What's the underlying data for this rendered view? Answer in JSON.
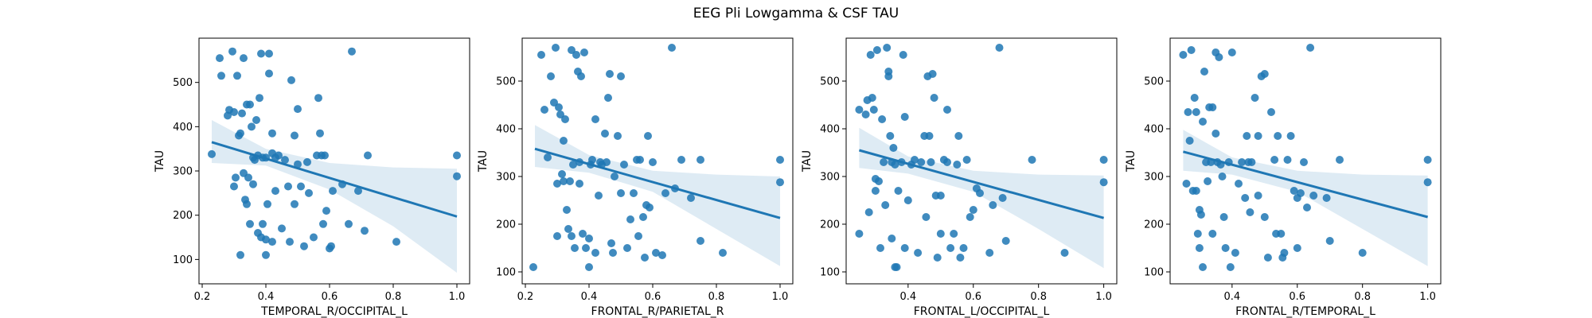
{
  "title": "EEG Pli Lowgamma & CSF TAU",
  "colors": {
    "point": "#1f77b4",
    "line": "#1f77b4",
    "band": "#1f77b4"
  },
  "chart_data": [
    {
      "type": "scatter",
      "xlabel": "TEMPORAL_R/OCCIPITAL_L",
      "ylabel": "TAU",
      "xlim": [
        0.19,
        1.04
      ],
      "ylim": [
        45,
        600
      ],
      "xticks": [
        0.2,
        0.4,
        0.6,
        0.8,
        1.0
      ],
      "xtick_labels": [
        "0.2",
        "0.4",
        "0.6",
        "0.8",
        "1.0"
      ],
      "yticks": [
        100,
        200,
        300,
        400,
        500
      ],
      "yticks_labels": [
        "100",
        "200",
        "300",
        "400",
        "500"
      ],
      "fit_line": [
        [
          0.23,
          365
        ],
        [
          1.0,
          197
        ]
      ],
      "band": {
        "x": [
          0.23,
          0.4,
          0.6,
          0.8,
          1.0
        ],
        "upper": [
          415,
          350,
          318,
          308,
          305
        ],
        "lower": [
          318,
          312,
          258,
          175,
          70
        ]
      },
      "points": [
        [
          0.23,
          338
        ],
        [
          0.255,
          555
        ],
        [
          0.26,
          515
        ],
        [
          0.28,
          425
        ],
        [
          0.285,
          438
        ],
        [
          0.295,
          570
        ],
        [
          0.3,
          265
        ],
        [
          0.3,
          433
        ],
        [
          0.305,
          285
        ],
        [
          0.31,
          515
        ],
        [
          0.315,
          380
        ],
        [
          0.32,
          110
        ],
        [
          0.32,
          385
        ],
        [
          0.325,
          430
        ],
        [
          0.33,
          295
        ],
        [
          0.33,
          555
        ],
        [
          0.335,
          235
        ],
        [
          0.34,
          225
        ],
        [
          0.34,
          450
        ],
        [
          0.345,
          285
        ],
        [
          0.35,
          180
        ],
        [
          0.35,
          450
        ],
        [
          0.355,
          400
        ],
        [
          0.36,
          330
        ],
        [
          0.36,
          270
        ],
        [
          0.365,
          325
        ],
        [
          0.37,
          415
        ],
        [
          0.375,
          160
        ],
        [
          0.375,
          335
        ],
        [
          0.38,
          465
        ],
        [
          0.385,
          150
        ],
        [
          0.385,
          565
        ],
        [
          0.39,
          180
        ],
        [
          0.39,
          330
        ],
        [
          0.4,
          330
        ],
        [
          0.4,
          145
        ],
        [
          0.4,
          110
        ],
        [
          0.405,
          225
        ],
        [
          0.41,
          520
        ],
        [
          0.41,
          565
        ],
        [
          0.42,
          340
        ],
        [
          0.42,
          385
        ],
        [
          0.42,
          140
        ],
        [
          0.43,
          330
        ],
        [
          0.43,
          255
        ],
        [
          0.44,
          335
        ],
        [
          0.45,
          170
        ],
        [
          0.46,
          325
        ],
        [
          0.47,
          265
        ],
        [
          0.475,
          140
        ],
        [
          0.48,
          505
        ],
        [
          0.49,
          225
        ],
        [
          0.49,
          380
        ],
        [
          0.5,
          315
        ],
        [
          0.5,
          440
        ],
        [
          0.51,
          265
        ],
        [
          0.52,
          130
        ],
        [
          0.53,
          320
        ],
        [
          0.535,
          250
        ],
        [
          0.55,
          150
        ],
        [
          0.56,
          335
        ],
        [
          0.565,
          465
        ],
        [
          0.57,
          385
        ],
        [
          0.575,
          335
        ],
        [
          0.58,
          180
        ],
        [
          0.585,
          335
        ],
        [
          0.59,
          210
        ],
        [
          0.6,
          125
        ],
        [
          0.605,
          130
        ],
        [
          0.61,
          255
        ],
        [
          0.64,
          270
        ],
        [
          0.66,
          180
        ],
        [
          0.67,
          570
        ],
        [
          0.69,
          255
        ],
        [
          0.71,
          165
        ],
        [
          0.72,
          335
        ],
        [
          0.81,
          140
        ],
        [
          1.0,
          335
        ],
        [
          1.0,
          288
        ]
      ]
    },
    {
      "type": "scatter",
      "xlabel": "FRONTAL_R/PARIETAL_R",
      "ylabel": "TAU",
      "xlim": [
        0.19,
        1.04
      ],
      "ylim": [
        75,
        590
      ],
      "xticks": [
        0.2,
        0.4,
        0.6,
        0.8,
        1.0
      ],
      "xtick_labels": [
        "0.2",
        "0.4",
        "0.6",
        "0.8",
        "1.0"
      ],
      "yticks": [
        100,
        200,
        300,
        400,
        500
      ],
      "yticks_labels": [
        "100",
        "200",
        "300",
        "400",
        "500"
      ],
      "fit_line": [
        [
          0.23,
          358
        ],
        [
          1.0,
          213
        ]
      ],
      "band": {
        "x": [
          0.23,
          0.4,
          0.6,
          0.8,
          1.0
        ],
        "upper": [
          408,
          345,
          312,
          304,
          300
        ],
        "lower": [
          320,
          308,
          268,
          190,
          112
        ]
      },
      "points": [
        [
          0.225,
          110
        ],
        [
          0.25,
          555
        ],
        [
          0.26,
          440
        ],
        [
          0.27,
          340
        ],
        [
          0.28,
          510
        ],
        [
          0.29,
          455
        ],
        [
          0.295,
          570
        ],
        [
          0.3,
          285
        ],
        [
          0.3,
          175
        ],
        [
          0.305,
          445
        ],
        [
          0.31,
          430
        ],
        [
          0.315,
          305
        ],
        [
          0.32,
          290
        ],
        [
          0.32,
          375
        ],
        [
          0.325,
          420
        ],
        [
          0.33,
          230
        ],
        [
          0.335,
          190
        ],
        [
          0.34,
          290
        ],
        [
          0.345,
          175
        ],
        [
          0.345,
          565
        ],
        [
          0.35,
          325
        ],
        [
          0.355,
          150
        ],
        [
          0.36,
          555
        ],
        [
          0.365,
          520
        ],
        [
          0.37,
          330
        ],
        [
          0.37,
          285
        ],
        [
          0.375,
          510
        ],
        [
          0.38,
          180
        ],
        [
          0.385,
          560
        ],
        [
          0.39,
          150
        ],
        [
          0.4,
          170
        ],
        [
          0.4,
          110
        ],
        [
          0.405,
          325
        ],
        [
          0.41,
          335
        ],
        [
          0.42,
          420
        ],
        [
          0.42,
          140
        ],
        [
          0.43,
          260
        ],
        [
          0.435,
          330
        ],
        [
          0.44,
          325
        ],
        [
          0.45,
          390
        ],
        [
          0.455,
          330
        ],
        [
          0.46,
          465
        ],
        [
          0.465,
          515
        ],
        [
          0.47,
          160
        ],
        [
          0.475,
          140
        ],
        [
          0.48,
          300
        ],
        [
          0.49,
          385
        ],
        [
          0.5,
          510
        ],
        [
          0.5,
          265
        ],
        [
          0.51,
          325
        ],
        [
          0.52,
          150
        ],
        [
          0.53,
          210
        ],
        [
          0.54,
          265
        ],
        [
          0.55,
          335
        ],
        [
          0.555,
          175
        ],
        [
          0.56,
          335
        ],
        [
          0.57,
          215
        ],
        [
          0.575,
          130
        ],
        [
          0.58,
          240
        ],
        [
          0.585,
          385
        ],
        [
          0.59,
          235
        ],
        [
          0.6,
          330
        ],
        [
          0.61,
          140
        ],
        [
          0.63,
          135
        ],
        [
          0.64,
          265
        ],
        [
          0.66,
          570
        ],
        [
          0.67,
          275
        ],
        [
          0.69,
          335
        ],
        [
          0.72,
          255
        ],
        [
          0.75,
          165
        ],
        [
          0.75,
          335
        ],
        [
          0.82,
          140
        ],
        [
          1.0,
          335
        ],
        [
          1.0,
          288
        ]
      ]
    },
    {
      "type": "scatter",
      "xlabel": "FRONTAL_L/OCCIPITAL_L",
      "ylabel": "TAU",
      "xlim": [
        0.21,
        1.04
      ],
      "ylim": [
        75,
        590
      ],
      "xticks": [
        0.4,
        0.6,
        0.8,
        1.0
      ],
      "xtick_labels": [
        "0.4",
        "0.6",
        "0.8",
        "1.0"
      ],
      "yticks": [
        100,
        200,
        300,
        400,
        500
      ],
      "yticks_labels": [
        "100",
        "200",
        "300",
        "400",
        "500"
      ],
      "fit_line": [
        [
          0.25,
          355
        ],
        [
          1.0,
          213
        ]
      ],
      "band": {
        "x": [
          0.25,
          0.4,
          0.6,
          0.8,
          1.0
        ],
        "upper": [
          402,
          342,
          312,
          304,
          302
        ],
        "lower": [
          318,
          306,
          268,
          190,
          108
        ]
      },
      "points": [
        [
          0.25,
          180
        ],
        [
          0.25,
          440
        ],
        [
          0.27,
          430
        ],
        [
          0.275,
          460
        ],
        [
          0.28,
          225
        ],
        [
          0.285,
          555
        ],
        [
          0.29,
          465
        ],
        [
          0.295,
          440
        ],
        [
          0.3,
          270
        ],
        [
          0.3,
          295
        ],
        [
          0.305,
          565
        ],
        [
          0.31,
          290
        ],
        [
          0.315,
          150
        ],
        [
          0.32,
          420
        ],
        [
          0.325,
          330
        ],
        [
          0.33,
          240
        ],
        [
          0.335,
          570
        ],
        [
          0.34,
          520
        ],
        [
          0.34,
          510
        ],
        [
          0.345,
          385
        ],
        [
          0.35,
          330
        ],
        [
          0.35,
          170
        ],
        [
          0.355,
          360
        ],
        [
          0.36,
          325
        ],
        [
          0.36,
          110
        ],
        [
          0.365,
          110
        ],
        [
          0.37,
          270
        ],
        [
          0.38,
          330
        ],
        [
          0.385,
          555
        ],
        [
          0.39,
          150
        ],
        [
          0.39,
          425
        ],
        [
          0.4,
          250
        ],
        [
          0.41,
          325
        ],
        [
          0.42,
          335
        ],
        [
          0.43,
          140
        ],
        [
          0.44,
          330
        ],
        [
          0.45,
          385
        ],
        [
          0.455,
          215
        ],
        [
          0.46,
          510
        ],
        [
          0.465,
          385
        ],
        [
          0.47,
          330
        ],
        [
          0.475,
          515
        ],
        [
          0.48,
          465
        ],
        [
          0.485,
          260
        ],
        [
          0.49,
          130
        ],
        [
          0.5,
          180
        ],
        [
          0.5,
          260
        ],
        [
          0.51,
          335
        ],
        [
          0.52,
          330
        ],
        [
          0.52,
          440
        ],
        [
          0.53,
          150
        ],
        [
          0.54,
          180
        ],
        [
          0.55,
          325
        ],
        [
          0.555,
          385
        ],
        [
          0.56,
          130
        ],
        [
          0.57,
          150
        ],
        [
          0.58,
          335
        ],
        [
          0.59,
          215
        ],
        [
          0.6,
          230
        ],
        [
          0.61,
          275
        ],
        [
          0.62,
          265
        ],
        [
          0.65,
          140
        ],
        [
          0.66,
          240
        ],
        [
          0.68,
          570
        ],
        [
          0.69,
          255
        ],
        [
          0.7,
          165
        ],
        [
          0.78,
          335
        ],
        [
          0.88,
          140
        ],
        [
          1.0,
          335
        ],
        [
          1.0,
          288
        ]
      ]
    },
    {
      "type": "scatter",
      "xlabel": "FRONTAL_R/TEMPORAL_L",
      "ylabel": "TAU",
      "xlim": [
        0.21,
        1.04
      ],
      "ylim": [
        75,
        590
      ],
      "xticks": [
        0.4,
        0.6,
        0.8,
        1.0
      ],
      "xtick_labels": [
        "0.4",
        "0.6",
        "0.8",
        "1.0"
      ],
      "yticks": [
        100,
        200,
        300,
        400,
        500
      ],
      "yticks_labels": [
        "100",
        "200",
        "300",
        "400",
        "500"
      ],
      "fit_line": [
        [
          0.25,
          352
        ],
        [
          1.0,
          215
        ]
      ],
      "band": {
        "x": [
          0.25,
          0.4,
          0.6,
          0.8,
          1.0
        ],
        "upper": [
          398,
          340,
          312,
          304,
          302
        ],
        "lower": [
          312,
          304,
          268,
          190,
          112
        ]
      },
      "points": [
        [
          0.25,
          555
        ],
        [
          0.26,
          285
        ],
        [
          0.265,
          435
        ],
        [
          0.27,
          375
        ],
        [
          0.275,
          565
        ],
        [
          0.28,
          270
        ],
        [
          0.285,
          465
        ],
        [
          0.29,
          270
        ],
        [
          0.29,
          435
        ],
        [
          0.295,
          180
        ],
        [
          0.3,
          230
        ],
        [
          0.3,
          150
        ],
        [
          0.305,
          220
        ],
        [
          0.31,
          415
        ],
        [
          0.31,
          110
        ],
        [
          0.315,
          520
        ],
        [
          0.32,
          330
        ],
        [
          0.325,
          290
        ],
        [
          0.33,
          445
        ],
        [
          0.335,
          330
        ],
        [
          0.34,
          445
        ],
        [
          0.34,
          180
        ],
        [
          0.35,
          390
        ],
        [
          0.35,
          560
        ],
        [
          0.355,
          330
        ],
        [
          0.36,
          550
        ],
        [
          0.365,
          325
        ],
        [
          0.37,
          300
        ],
        [
          0.375,
          215
        ],
        [
          0.38,
          150
        ],
        [
          0.39,
          330
        ],
        [
          0.395,
          110
        ],
        [
          0.4,
          560
        ],
        [
          0.41,
          140
        ],
        [
          0.42,
          285
        ],
        [
          0.43,
          330
        ],
        [
          0.44,
          255
        ],
        [
          0.445,
          385
        ],
        [
          0.45,
          330
        ],
        [
          0.455,
          225
        ],
        [
          0.46,
          330
        ],
        [
          0.47,
          465
        ],
        [
          0.48,
          260
        ],
        [
          0.48,
          385
        ],
        [
          0.49,
          510
        ],
        [
          0.5,
          515
        ],
        [
          0.5,
          215
        ],
        [
          0.51,
          130
        ],
        [
          0.52,
          435
        ],
        [
          0.53,
          335
        ],
        [
          0.535,
          180
        ],
        [
          0.54,
          385
        ],
        [
          0.55,
          180
        ],
        [
          0.555,
          130
        ],
        [
          0.56,
          140
        ],
        [
          0.57,
          335
        ],
        [
          0.58,
          385
        ],
        [
          0.59,
          270
        ],
        [
          0.6,
          255
        ],
        [
          0.6,
          150
        ],
        [
          0.61,
          265
        ],
        [
          0.62,
          330
        ],
        [
          0.63,
          235
        ],
        [
          0.64,
          570
        ],
        [
          0.65,
          260
        ],
        [
          0.69,
          255
        ],
        [
          0.7,
          165
        ],
        [
          0.73,
          335
        ],
        [
          0.8,
          140
        ],
        [
          1.0,
          335
        ],
        [
          1.0,
          288
        ]
      ]
    }
  ]
}
